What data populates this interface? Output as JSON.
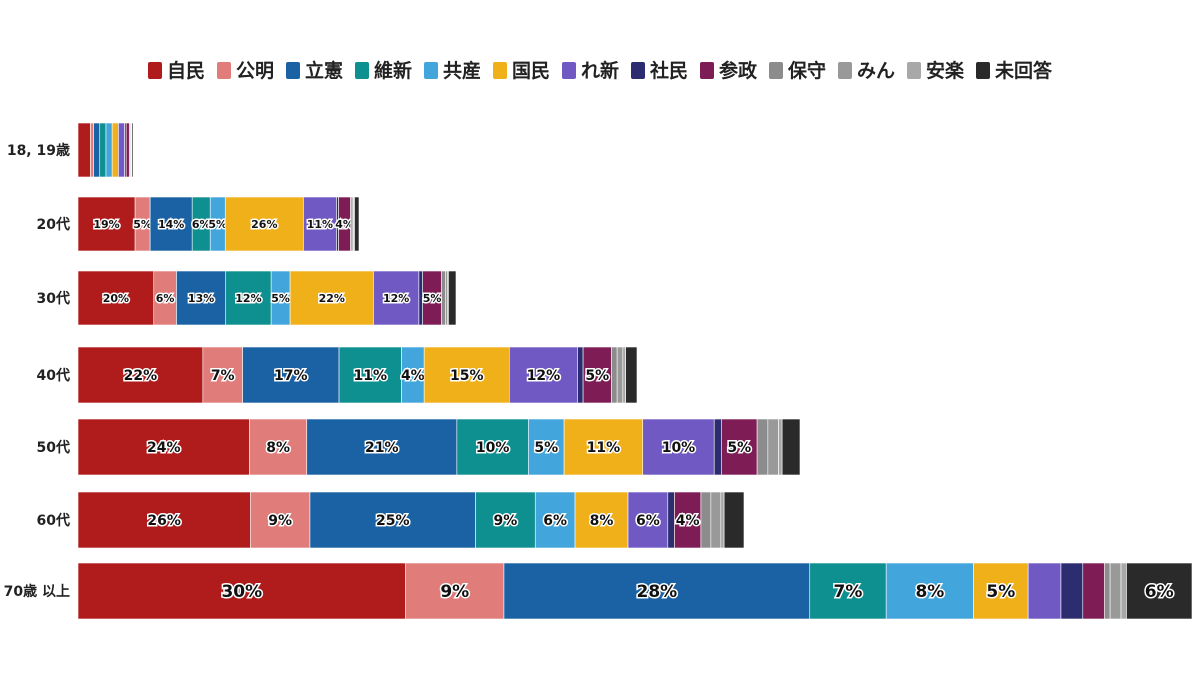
{
  "chart_data": {
    "type": "bar",
    "orientation": "horizontal",
    "stacked": true,
    "title": "",
    "xlabel": "",
    "ylabel": "",
    "grid": false,
    "legend_position": "top",
    "categories": [
      "18, 19歳",
      "20代",
      "30代",
      "40代",
      "50代",
      "60代",
      "70歳 以上"
    ],
    "series": [
      {
        "name": "自民",
        "color": "#b01c1c",
        "values": [
          4,
          19,
          20,
          22,
          24,
          26,
          30
        ],
        "labels": [
          "",
          "19%",
          "20%",
          "22%",
          "24%",
          "26%",
          "30%"
        ]
      },
      {
        "name": "公明",
        "color": "#e07c7a",
        "values": [
          1,
          5,
          6,
          7,
          8,
          9,
          9
        ],
        "labels": [
          "",
          "5%",
          "6%",
          "7%",
          "8%",
          "9%",
          "9%"
        ]
      },
      {
        "name": "立憲",
        "color": "#1b62a5",
        "values": [
          2,
          14,
          13,
          17,
          21,
          25,
          28
        ],
        "labels": [
          "",
          "14%",
          "13%",
          "17%",
          "21%",
          "25%",
          "28%"
        ]
      },
      {
        "name": "維新",
        "color": "#0f9090",
        "values": [
          2,
          6,
          12,
          11,
          10,
          9,
          7
        ],
        "labels": [
          "",
          "6%",
          "12%",
          "11%",
          "10%",
          "9%",
          "7%"
        ]
      },
      {
        "name": "共産",
        "color": "#42a5dc",
        "values": [
          2,
          5,
          5,
          4,
          5,
          6,
          8
        ],
        "labels": [
          "",
          "5%",
          "5%",
          "4%",
          "5%",
          "6%",
          "8%"
        ]
      },
      {
        "name": "国民",
        "color": "#f0b01a",
        "values": [
          2,
          26,
          22,
          15,
          11,
          8,
          5
        ],
        "labels": [
          "",
          "26%",
          "22%",
          "15%",
          "11%",
          "8%",
          "5%"
        ]
      },
      {
        "name": "れ新",
        "color": "#7059c2",
        "values": [
          2,
          11,
          12,
          12,
          10,
          6,
          3
        ],
        "labels": [
          "",
          "11%",
          "12%",
          "12%",
          "10%",
          "6%",
          ""
        ]
      },
      {
        "name": "社民",
        "color": "#2c2d70",
        "values": [
          0.5,
          0.7,
          1,
          1,
          1,
          1,
          2
        ],
        "labels": [
          "",
          "",
          "",
          "",
          "",
          "",
          ""
        ]
      },
      {
        "name": "参政",
        "color": "#7e1c56",
        "values": [
          1,
          4,
          5,
          5,
          5,
          4,
          2
        ],
        "labels": [
          "",
          "4%",
          "5%",
          "5%",
          "5%",
          "4%",
          ""
        ]
      },
      {
        "name": "保守",
        "color": "#8c8c8c",
        "values": [
          0.3,
          0.5,
          1,
          1,
          1.5,
          1.5,
          0.5
        ],
        "labels": [
          "",
          "",
          "",
          "",
          "",
          "",
          ""
        ]
      },
      {
        "name": "みん",
        "color": "#999999",
        "values": [
          0.3,
          0.5,
          0.5,
          1,
          1.5,
          1.5,
          1
        ],
        "labels": [
          "",
          "",
          "",
          "",
          "",
          "",
          ""
        ]
      },
      {
        "name": "安楽",
        "color": "#a8a8a8",
        "values": [
          0.2,
          0.3,
          0.3,
          0.5,
          0.5,
          0.5,
          0.5
        ],
        "labels": [
          "",
          "",
          "",
          "",
          "",
          "",
          ""
        ]
      },
      {
        "name": "未回答",
        "color": "#2a2a2a",
        "values": [
          0.4,
          1.5,
          2,
          2,
          2.5,
          3,
          6
        ],
        "labels": [
          "",
          "",
          "",
          "",
          "",
          "",
          "6%"
        ]
      }
    ]
  }
}
